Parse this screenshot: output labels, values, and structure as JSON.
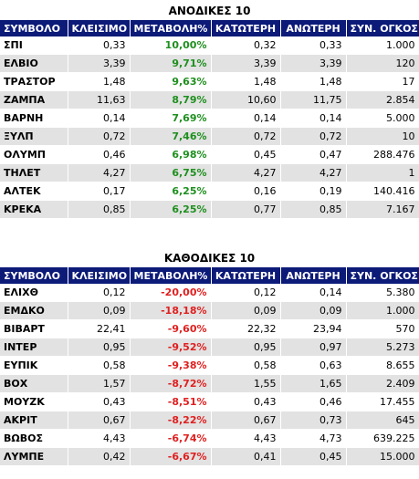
{
  "columns": [
    "ΣΥΜΒΟΛΟ",
    "ΚΛΕΙΣΙΜΟ",
    "ΜΕΤΑΒΟΛΗ%",
    "ΚΑΤΩΤΕΡΗ",
    "ΑΝΩΤΕΡΗ",
    "ΣΥΝ. ΟΓΚΟΣ"
  ],
  "gainers": {
    "title": "ΑΝΟΔΙΚΕΣ 10",
    "rows": [
      [
        "ΣΠΙ",
        "0,33",
        "10,00%",
        "0,32",
        "0,33",
        "1.000"
      ],
      [
        "ΕΛΒΙΟ",
        "3,39",
        "9,71%",
        "3,39",
        "3,39",
        "120"
      ],
      [
        "ΤΡΑΣΤΟΡ",
        "1,48",
        "9,63%",
        "1,48",
        "1,48",
        "17"
      ],
      [
        "ΖΑΜΠΑ",
        "11,63",
        "8,79%",
        "10,60",
        "11,75",
        "2.854"
      ],
      [
        "ΒΑΡΝΗ",
        "0,14",
        "7,69%",
        "0,14",
        "0,14",
        "5.000"
      ],
      [
        "ΞΥΛΠ",
        "0,72",
        "7,46%",
        "0,72",
        "0,72",
        "10"
      ],
      [
        "ΟΛΥΜΠ",
        "0,46",
        "6,98%",
        "0,45",
        "0,47",
        "288.476"
      ],
      [
        "ΤΗΛΕΤ",
        "4,27",
        "6,75%",
        "4,27",
        "4,27",
        "1"
      ],
      [
        "ΑΛΤΕΚ",
        "0,17",
        "6,25%",
        "0,16",
        "0,19",
        "140.416"
      ],
      [
        "ΚΡΕΚΑ",
        "0,85",
        "6,25%",
        "0,77",
        "0,85",
        "7.167"
      ]
    ]
  },
  "losers": {
    "title": "ΚΑΘΟΔΙΚΕΣ 10",
    "rows": [
      [
        "ΕΛΙΧΘ",
        "0,12",
        "-20,00%",
        "0,12",
        "0,14",
        "5.380"
      ],
      [
        "ΕΜΔΚΟ",
        "0,09",
        "-18,18%",
        "0,09",
        "0,09",
        "1.000"
      ],
      [
        "ΒΙΒΑΡΤ",
        "22,41",
        "-9,60%",
        "22,32",
        "23,94",
        "570"
      ],
      [
        "ΙΝΤΕΡ",
        "0,95",
        "-9,52%",
        "0,95",
        "0,97",
        "5.273"
      ],
      [
        "ΕΥΠΙΚ",
        "0,58",
        "-9,38%",
        "0,58",
        "0,63",
        "8.655"
      ],
      [
        "ΒΟΧ",
        "1,57",
        "-8,72%",
        "1,55",
        "1,65",
        "2.409"
      ],
      [
        "ΜΟΥΖΚ",
        "0,43",
        "-8,51%",
        "0,43",
        "0,46",
        "17.455"
      ],
      [
        "ΑΚΡΙΤ",
        "0,67",
        "-8,22%",
        "0,67",
        "0,73",
        "645"
      ],
      [
        "ΒΩΒΟΣ",
        "4,43",
        "-6,74%",
        "4,43",
        "4,73",
        "639.225"
      ],
      [
        "ΛΥΜΠΕ",
        "0,42",
        "-6,67%",
        "0,41",
        "0,45",
        "15.000"
      ]
    ]
  },
  "colors": {
    "header_bg": "#0c1a78",
    "row_alt": "#e2e2e2",
    "up": "#1e8f1e",
    "down": "#e02020"
  }
}
